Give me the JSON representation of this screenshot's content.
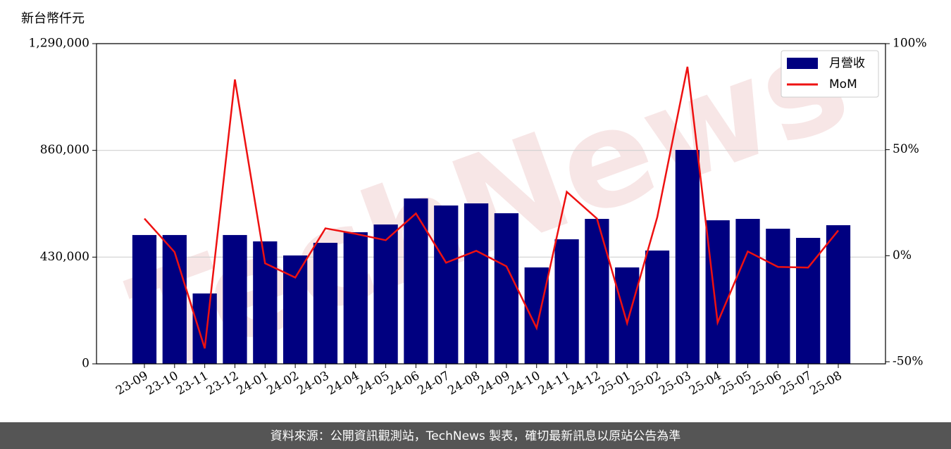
{
  "chart_data": {
    "type": "bar_line",
    "ylabel": "新台幣仟元",
    "categories": [
      "23-09",
      "23-10",
      "23-11",
      "23-12",
      "24-01",
      "24-02",
      "24-03",
      "24-04",
      "24-05",
      "24-06",
      "24-07",
      "24-08",
      "24-09",
      "24-10",
      "24-11",
      "24-12",
      "25-01",
      "25-02",
      "25-03",
      "25-04",
      "25-05",
      "25-06",
      "25-07",
      "25-08"
    ],
    "series": [
      {
        "name": "月營收",
        "type": "bar",
        "color": "#000080",
        "values": [
          519000,
          519000,
          283500,
          519000,
          493300,
          436600,
          487600,
          530200,
          561400,
          666300,
          637900,
          646400,
          606700,
          388400,
          501800,
          584000,
          388400,
          456500,
          861900,
          578400,
          584000,
          544400,
          507500,
          558500
        ]
      },
      {
        "name": "MoM",
        "type": "line",
        "axis": "y2",
        "color": "#ee1111",
        "values": [
          17.5,
          1.7,
          -43.7,
          83.1,
          -3.6,
          -10.3,
          12.9,
          10.3,
          7.3,
          19.9,
          -3.3,
          2.3,
          -5,
          -34.1,
          30.1,
          17.5,
          -31.8,
          18.2,
          89.1,
          -31.5,
          2,
          -5.3,
          -5.6,
          11.9
        ]
      }
    ],
    "ylim": [
      0,
      1290000
    ],
    "yticks": [
      0,
      {
        "value": 430000,
        "label": "430,000"
      },
      {
        "value": 860000,
        "label": "860,000"
      },
      {
        "value": 1290000,
        "label": "1,290,000"
      }
    ],
    "y2lim": [
      -51,
      100
    ],
    "y2ticks": [
      {
        "value": -50,
        "label": "-50%"
      },
      {
        "value": 0,
        "label": "0%"
      },
      {
        "value": 50,
        "label": "50%"
      },
      {
        "value": 100,
        "label": "100%"
      }
    ],
    "grid": true,
    "legend": "upper right",
    "watermark": "TechNews",
    "footer": "資料來源：公開資訊觀測站，TechNews 製表，確切最新訊息以原站公告為準"
  }
}
